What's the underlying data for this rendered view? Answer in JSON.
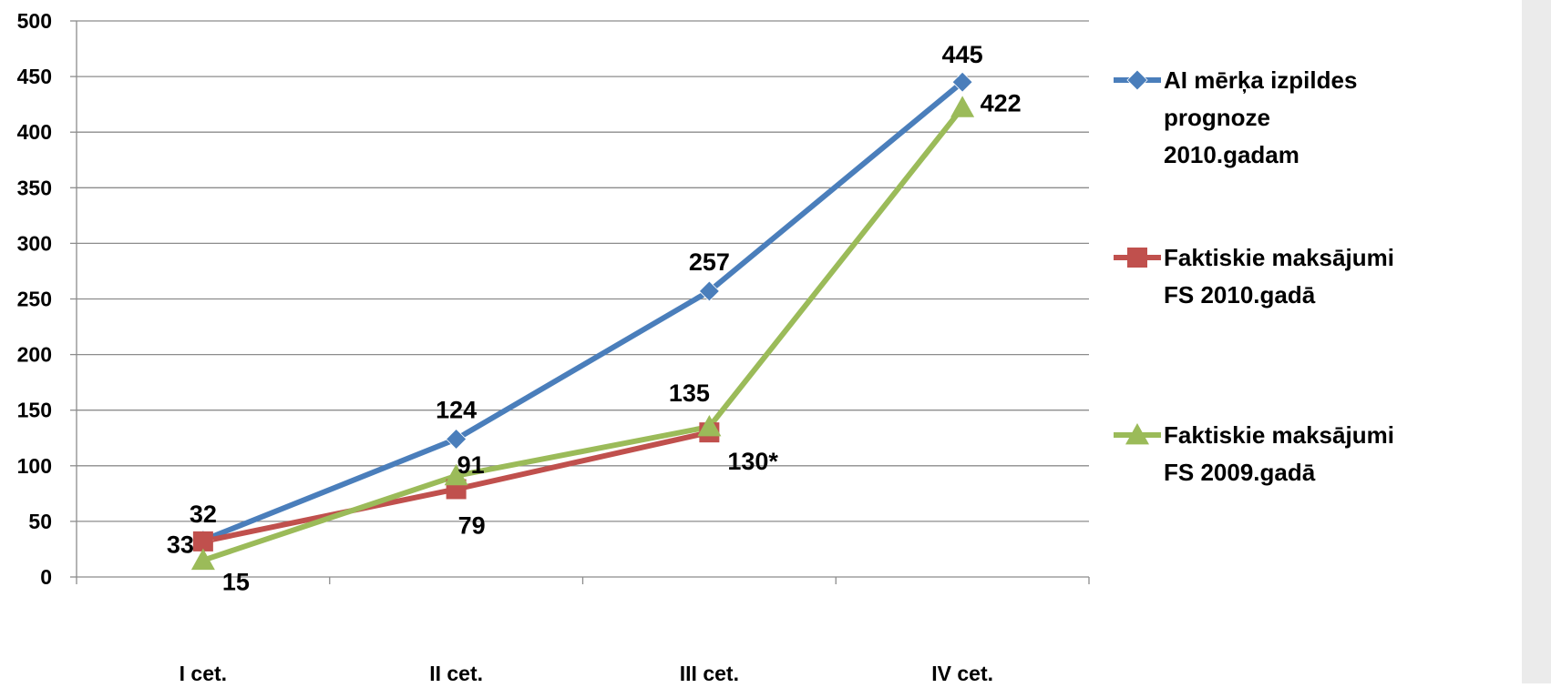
{
  "chart_data": {
    "type": "line",
    "categories": [
      "I cet.",
      "II cet.",
      "III cet.",
      "IV cet."
    ],
    "ylim": [
      0,
      500
    ],
    "yticks": [
      0,
      50,
      100,
      150,
      200,
      250,
      300,
      350,
      400,
      450,
      500
    ],
    "grid": true,
    "legend_position": "right",
    "series": [
      {
        "name": "AI mērķa izpildes prognoze 2010.gadam",
        "legend_lines": [
          "AI mērķa izpildes",
          "prognoze",
          "2010.gadam"
        ],
        "values": [
          33,
          124,
          257,
          445
        ],
        "labels": [
          "33",
          "124",
          "257",
          "445"
        ],
        "color": "#4a7ebb",
        "marker": "diamond"
      },
      {
        "name": "Faktiskie maksājumi FS 2010.gadā",
        "legend_lines": [
          "Faktiskie maksājumi",
          "FS 2010.gadā"
        ],
        "values": [
          32,
          79,
          130,
          null
        ],
        "labels": [
          "32",
          "79",
          "130*",
          null
        ],
        "color": "#c0504d",
        "marker": "square"
      },
      {
        "name": "Faktiskie maksājumi FS 2009.gadā",
        "legend_lines": [
          "Faktiskie maksājumi",
          "FS 2009.gadā"
        ],
        "values": [
          15,
          91,
          135,
          422
        ],
        "labels": [
          "15",
          "91",
          "135",
          "422"
        ],
        "color": "#9bbb59",
        "marker": "triangle"
      }
    ]
  }
}
